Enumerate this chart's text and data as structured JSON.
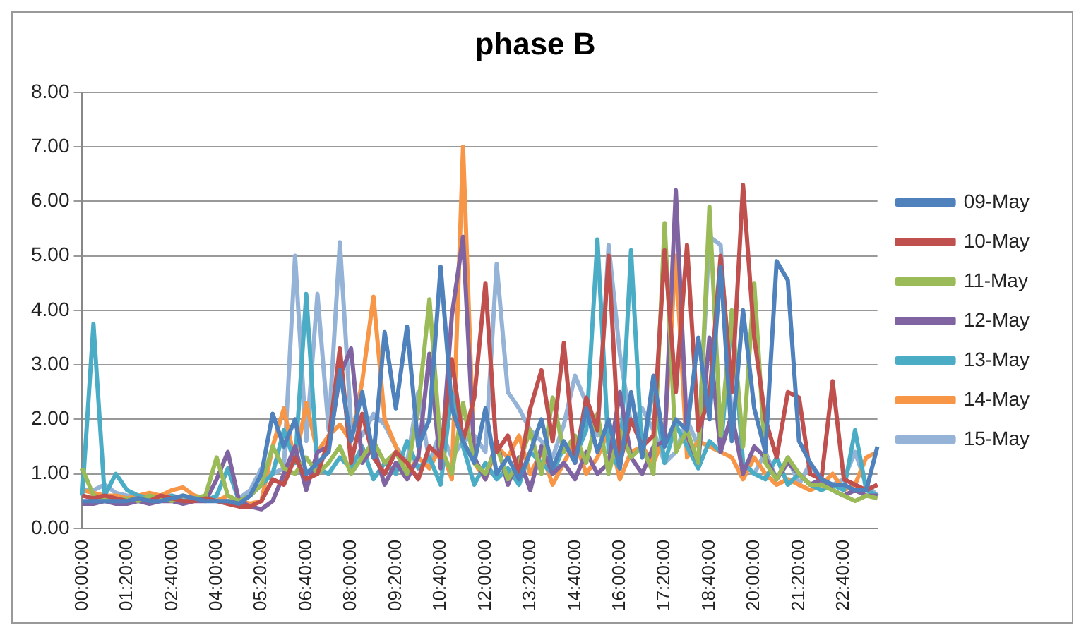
{
  "chart_data": {
    "type": "line",
    "title": "phase B",
    "categories": [
      "00:00:00",
      null,
      null,
      null,
      "01:20:00",
      null,
      null,
      null,
      "02:40:00",
      null,
      null,
      null,
      "04:00:00",
      null,
      null,
      null,
      "05:20:00",
      null,
      null,
      null,
      "06:40:00",
      null,
      null,
      null,
      "08:00:00",
      null,
      null,
      null,
      "09:20:00",
      null,
      null,
      null,
      "10:40:00",
      null,
      null,
      null,
      "12:00:00",
      null,
      null,
      null,
      "13:20:00",
      null,
      null,
      null,
      "14:40:00",
      null,
      null,
      null,
      "16:00:00",
      null,
      null,
      null,
      "17:20:00",
      null,
      null,
      null,
      "18:40:00",
      null,
      null,
      null,
      "20:00:00",
      null,
      null,
      null,
      "21:20:00",
      null,
      null,
      null,
      "22:40:00",
      null,
      null,
      null
    ],
    "ylim": [
      0,
      8
    ],
    "yticks": [
      {
        "value": 0,
        "label": "0.00"
      },
      {
        "value": 1,
        "label": "1.00"
      },
      {
        "value": 2,
        "label": "2.00"
      },
      {
        "value": 3,
        "label": "3.00"
      },
      {
        "value": 4,
        "label": "4.00"
      },
      {
        "value": 5,
        "label": "5.00"
      },
      {
        "value": 6,
        "label": "6.00"
      },
      {
        "value": 7,
        "label": "7.00"
      },
      {
        "value": 8,
        "label": "8.00"
      }
    ],
    "grid": "y",
    "legend": "right",
    "marker": "none",
    "line_style": "solid",
    "series": [
      {
        "name": "09-May",
        "color": "#4f81bd",
        "values": [
          0.5,
          0.5,
          0.5,
          0.5,
          0.5,
          0.55,
          0.5,
          0.5,
          0.55,
          0.6,
          0.55,
          0.5,
          0.5,
          0.5,
          0.45,
          0.6,
          1.0,
          2.1,
          1.5,
          2.0,
          1.0,
          1.2,
          1.4,
          2.9,
          1.6,
          2.5,
          1.3,
          3.6,
          2.2,
          3.7,
          1.5,
          2.0,
          4.8,
          2.2,
          1.6,
          1.2,
          2.2,
          1.0,
          1.3,
          0.9,
          1.4,
          2.0,
          1.1,
          1.6,
          1.2,
          2.2,
          1.4,
          2.0,
          1.1,
          2.5,
          1.3,
          2.8,
          1.5,
          2.0,
          1.8,
          3.5,
          2.0,
          4.8,
          1.6,
          4.0,
          2.2,
          1.4,
          4.9,
          4.55,
          1.6,
          1.2,
          0.9,
          0.8,
          0.8,
          0.7,
          0.7,
          1.5
        ]
      },
      {
        "name": "10-May",
        "color": "#c0504d",
        "values": [
          0.6,
          0.55,
          0.6,
          0.55,
          0.5,
          0.55,
          0.5,
          0.6,
          0.55,
          0.5,
          0.5,
          0.55,
          0.5,
          0.45,
          0.4,
          0.4,
          0.5,
          0.9,
          0.8,
          1.3,
          0.9,
          1.0,
          1.6,
          3.3,
          1.2,
          2.1,
          1.3,
          1.0,
          1.4,
          1.2,
          0.9,
          1.5,
          1.3,
          3.1,
          1.6,
          2.4,
          4.5,
          1.4,
          1.7,
          1.0,
          2.2,
          2.9,
          1.6,
          3.4,
          1.2,
          2.4,
          1.8,
          5.0,
          1.2,
          2.0,
          1.5,
          1.7,
          5.1,
          2.5,
          5.2,
          1.8,
          2.4,
          5.0,
          2.5,
          6.3,
          3.5,
          2.0,
          1.3,
          2.5,
          2.4,
          1.0,
          0.9,
          2.7,
          0.9,
          0.8,
          0.7,
          0.8
        ]
      },
      {
        "name": "11-May",
        "color": "#9bbb59",
        "values": [
          1.1,
          0.6,
          0.55,
          0.5,
          0.55,
          0.5,
          0.6,
          0.55,
          0.5,
          0.6,
          0.55,
          0.6,
          1.3,
          0.6,
          0.5,
          0.6,
          0.8,
          1.5,
          1.1,
          1.0,
          1.3,
          1.0,
          1.2,
          1.5,
          1.0,
          1.3,
          1.6,
          1.2,
          1.4,
          1.0,
          2.2,
          4.2,
          1.5,
          1.0,
          2.3,
          1.2,
          1.0,
          1.5,
          0.9,
          1.2,
          1.8,
          1.0,
          2.4,
          1.4,
          1.7,
          1.2,
          2.1,
          1.0,
          1.8,
          1.3,
          1.5,
          1.0,
          5.6,
          1.4,
          1.8,
          1.2,
          5.9,
          1.7,
          4.0,
          1.5,
          4.5,
          1.2,
          0.9,
          1.3,
          1.0,
          0.8,
          0.8,
          0.7,
          0.6,
          0.5,
          0.6,
          0.55
        ]
      },
      {
        "name": "12-May",
        "color": "#8064a2",
        "values": [
          0.45,
          0.45,
          0.5,
          0.45,
          0.45,
          0.5,
          0.45,
          0.5,
          0.5,
          0.45,
          0.5,
          0.5,
          0.9,
          1.4,
          0.5,
          0.4,
          0.35,
          0.5,
          1.0,
          1.5,
          0.7,
          1.4,
          1.5,
          2.8,
          3.3,
          1.2,
          1.5,
          0.8,
          1.2,
          0.9,
          1.3,
          3.2,
          1.1,
          3.9,
          5.35,
          1.3,
          0.9,
          1.6,
          0.8,
          1.3,
          0.7,
          1.5,
          1.0,
          1.2,
          0.9,
          1.4,
          1.0,
          1.2,
          2.5,
          1.3,
          1.0,
          1.5,
          1.6,
          6.2,
          1.7,
          1.2,
          3.5,
          1.4,
          2.1,
          1.0,
          1.5,
          1.3,
          0.9,
          1.2,
          1.0,
          0.8,
          0.9,
          0.7,
          0.6,
          0.7,
          0.6,
          0.6
        ]
      },
      {
        "name": "13-May",
        "color": "#4bacc6",
        "values": [
          0.6,
          3.75,
          0.6,
          1.0,
          0.7,
          0.6,
          0.55,
          0.5,
          0.6,
          0.5,
          0.55,
          0.5,
          0.6,
          1.1,
          0.5,
          0.6,
          0.8,
          1.0,
          1.8,
          1.2,
          4.3,
          1.1,
          1.0,
          1.3,
          1.1,
          1.5,
          0.9,
          1.2,
          1.0,
          1.6,
          1.1,
          1.3,
          0.8,
          2.5,
          1.5,
          0.8,
          1.2,
          0.9,
          1.1,
          0.8,
          1.4,
          1.2,
          1.0,
          1.5,
          1.3,
          1.8,
          5.3,
          1.4,
          1.1,
          5.1,
          1.3,
          2.6,
          1.2,
          1.9,
          1.5,
          1.1,
          1.6,
          1.4,
          3.9,
          1.2,
          1.0,
          0.9,
          1.3,
          0.8,
          1.0,
          0.8,
          0.7,
          0.8,
          0.7,
          1.8,
          0.7,
          0.6
        ]
      },
      {
        "name": "14-May",
        "color": "#f79646",
        "values": [
          0.7,
          0.65,
          0.6,
          0.6,
          0.55,
          0.6,
          0.65,
          0.6,
          0.7,
          0.75,
          0.6,
          0.55,
          0.5,
          0.6,
          0.5,
          0.45,
          0.5,
          1.5,
          2.2,
          1.2,
          2.3,
          1.4,
          1.7,
          1.9,
          1.6,
          2.7,
          4.25,
          2.0,
          1.5,
          1.0,
          1.3,
          1.1,
          1.5,
          0.9,
          7.0,
          1.2,
          0.9,
          1.5,
          1.3,
          1.7,
          1.0,
          1.4,
          0.8,
          1.2,
          1.6,
          1.0,
          1.3,
          1.8,
          0.9,
          1.4,
          1.5,
          1.2,
          1.7,
          5.0,
          1.3,
          1.6,
          1.5,
          1.4,
          1.3,
          0.9,
          1.3,
          1.0,
          0.8,
          0.9,
          0.8,
          0.7,
          0.8,
          1.0,
          0.7,
          0.8,
          1.3,
          1.4
        ]
      },
      {
        "name": "15-May",
        "color": "#95b3d7",
        "values": [
          0.7,
          0.7,
          0.8,
          0.65,
          0.6,
          0.6,
          0.55,
          0.6,
          0.6,
          0.55,
          0.6,
          0.5,
          0.55,
          0.5,
          0.55,
          0.7,
          1.1,
          1.0,
          1.1,
          5.0,
          1.6,
          4.3,
          1.8,
          5.25,
          1.9,
          1.7,
          2.1,
          1.9,
          1.5,
          1.2,
          2.5,
          1.2,
          1.8,
          1.3,
          1.6,
          1.7,
          1.4,
          4.85,
          2.5,
          2.2,
          1.8,
          1.6,
          1.3,
          1.9,
          2.8,
          2.3,
          1.7,
          5.2,
          3.2,
          1.9,
          2.2,
          1.8,
          1.2,
          1.4,
          2.0,
          1.5,
          5.35,
          5.2,
          2.0,
          1.2,
          1.0,
          1.4,
          0.9,
          1.3,
          0.8,
          1.2,
          0.8,
          0.8,
          0.9,
          1.4,
          0.8,
          0.6
        ]
      }
    ]
  }
}
